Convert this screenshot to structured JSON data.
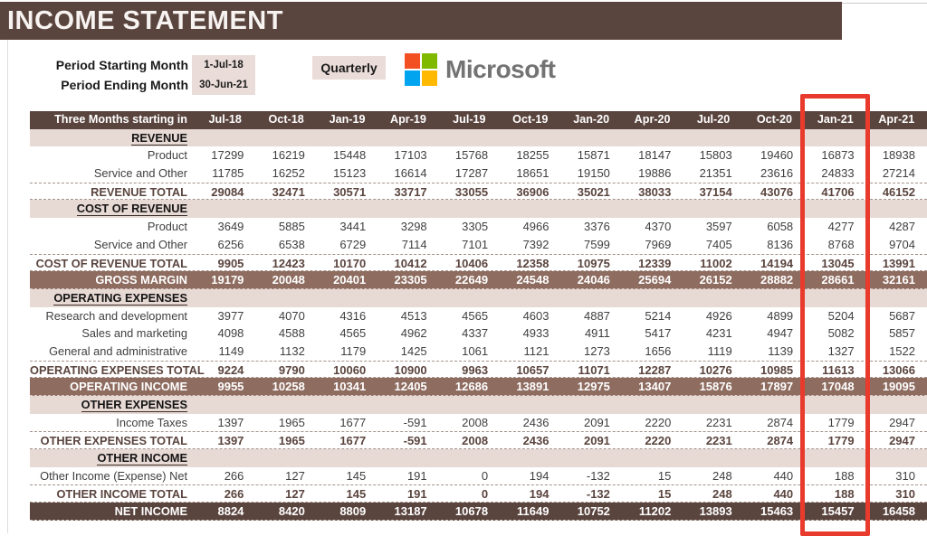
{
  "title": "INCOME STATEMENT",
  "meta": {
    "period_start_label": "Period Starting Month",
    "period_start_value": "1-Jul-18",
    "period_end_label": "Period Ending Month",
    "period_end_value": "30-Jun-21",
    "frequency_button": "Quarterly",
    "brand": "Microsoft"
  },
  "colors": {
    "dark_brown": "#5a443e",
    "medium_brown": "#8e6c60",
    "section_bg": "#e7d9d4",
    "field_bg": "#eadcd8",
    "annotation_red": "#e93b2d",
    "ms_red": "#f25022",
    "ms_green": "#7fba00",
    "ms_blue": "#00a4ef",
    "ms_yellow": "#ffb900",
    "brand_gray": "#737373"
  },
  "annotation": {
    "highlighted_column": "Jan-21",
    "highlighted_column_index": 10
  },
  "table": {
    "label_header": "Three Months starting in",
    "columns": [
      "Jul-18",
      "Oct-18",
      "Jan-19",
      "Apr-19",
      "Jul-19",
      "Oct-19",
      "Jan-20",
      "Apr-20",
      "Jul-20",
      "Oct-20",
      "Jan-21",
      "Apr-21"
    ],
    "rows": [
      {
        "type": "section",
        "label": "REVENUE"
      },
      {
        "type": "data",
        "label": "Product",
        "values": [
          17299,
          16219,
          15448,
          17103,
          15768,
          18255,
          15871,
          18147,
          15803,
          19460,
          16873,
          18938
        ]
      },
      {
        "type": "data",
        "label": "Service and Other",
        "values": [
          11785,
          16252,
          15123,
          16614,
          17287,
          18651,
          19150,
          19886,
          21351,
          23616,
          24833,
          27214
        ]
      },
      {
        "type": "total",
        "label": "REVENUE TOTAL",
        "values": [
          29084,
          32471,
          30571,
          33717,
          33055,
          36906,
          35021,
          38033,
          37154,
          43076,
          41706,
          46152
        ]
      },
      {
        "type": "section",
        "label": "COST OF REVENUE"
      },
      {
        "type": "data",
        "label": "Product",
        "values": [
          3649,
          5885,
          3441,
          3298,
          3305,
          4966,
          3376,
          4370,
          3597,
          6058,
          4277,
          4287
        ]
      },
      {
        "type": "data",
        "label": "Service and Other",
        "values": [
          6256,
          6538,
          6729,
          7114,
          7101,
          7392,
          7599,
          7969,
          7405,
          8136,
          8768,
          9704
        ]
      },
      {
        "type": "total",
        "label": "COST OF REVENUE TOTAL",
        "values": [
          9905,
          12423,
          10170,
          10412,
          10406,
          12358,
          10975,
          12339,
          11002,
          14194,
          13045,
          13991
        ]
      },
      {
        "type": "highlight",
        "label": "GROSS MARGIN",
        "values": [
          19179,
          20048,
          20401,
          23305,
          22649,
          24548,
          24046,
          25694,
          26152,
          28882,
          28661,
          32161
        ]
      },
      {
        "type": "section",
        "label": "OPERATING EXPENSES"
      },
      {
        "type": "data",
        "label": "Research and development",
        "values": [
          3977,
          4070,
          4316,
          4513,
          4565,
          4603,
          4887,
          5214,
          4926,
          4899,
          5204,
          5687
        ]
      },
      {
        "type": "data",
        "label": "Sales and marketing",
        "values": [
          4098,
          4588,
          4565,
          4962,
          4337,
          4933,
          4911,
          5417,
          4231,
          4947,
          5082,
          5857
        ]
      },
      {
        "type": "data",
        "label": "General and administrative",
        "values": [
          1149,
          1132,
          1179,
          1425,
          1061,
          1121,
          1273,
          1656,
          1119,
          1139,
          1327,
          1522
        ]
      },
      {
        "type": "total",
        "label": "OPERATING EXPENSES TOTAL",
        "values": [
          9224,
          9790,
          10060,
          10900,
          9963,
          10657,
          11071,
          12287,
          10276,
          10985,
          11613,
          13066
        ]
      },
      {
        "type": "highlight",
        "label": "OPERATING INCOME",
        "values": [
          9955,
          10258,
          10341,
          12405,
          12686,
          13891,
          12975,
          13407,
          15876,
          17897,
          17048,
          19095
        ]
      },
      {
        "type": "section",
        "label": "OTHER EXPENSES"
      },
      {
        "type": "data",
        "label": "Income Taxes",
        "values": [
          1397,
          1965,
          1677,
          -591,
          2008,
          2436,
          2091,
          2220,
          2231,
          2874,
          1779,
          2947
        ]
      },
      {
        "type": "total",
        "label": "OTHER EXPENSES TOTAL",
        "values": [
          1397,
          1965,
          1677,
          -591,
          2008,
          2436,
          2091,
          2220,
          2231,
          2874,
          1779,
          2947
        ]
      },
      {
        "type": "section",
        "label": "OTHER INCOME"
      },
      {
        "type": "data",
        "label": "Other Income (Expense) Net",
        "values": [
          266,
          127,
          145,
          191,
          0,
          194,
          -132,
          15,
          248,
          440,
          188,
          310
        ]
      },
      {
        "type": "total",
        "label": "OTHER INCOME TOTAL",
        "values": [
          266,
          127,
          145,
          191,
          0,
          194,
          -132,
          15,
          248,
          440,
          188,
          310
        ]
      },
      {
        "type": "dark",
        "label": "NET INCOME",
        "values": [
          8824,
          8420,
          8809,
          13187,
          10678,
          11649,
          10752,
          11202,
          13893,
          15463,
          15457,
          16458
        ]
      }
    ]
  }
}
